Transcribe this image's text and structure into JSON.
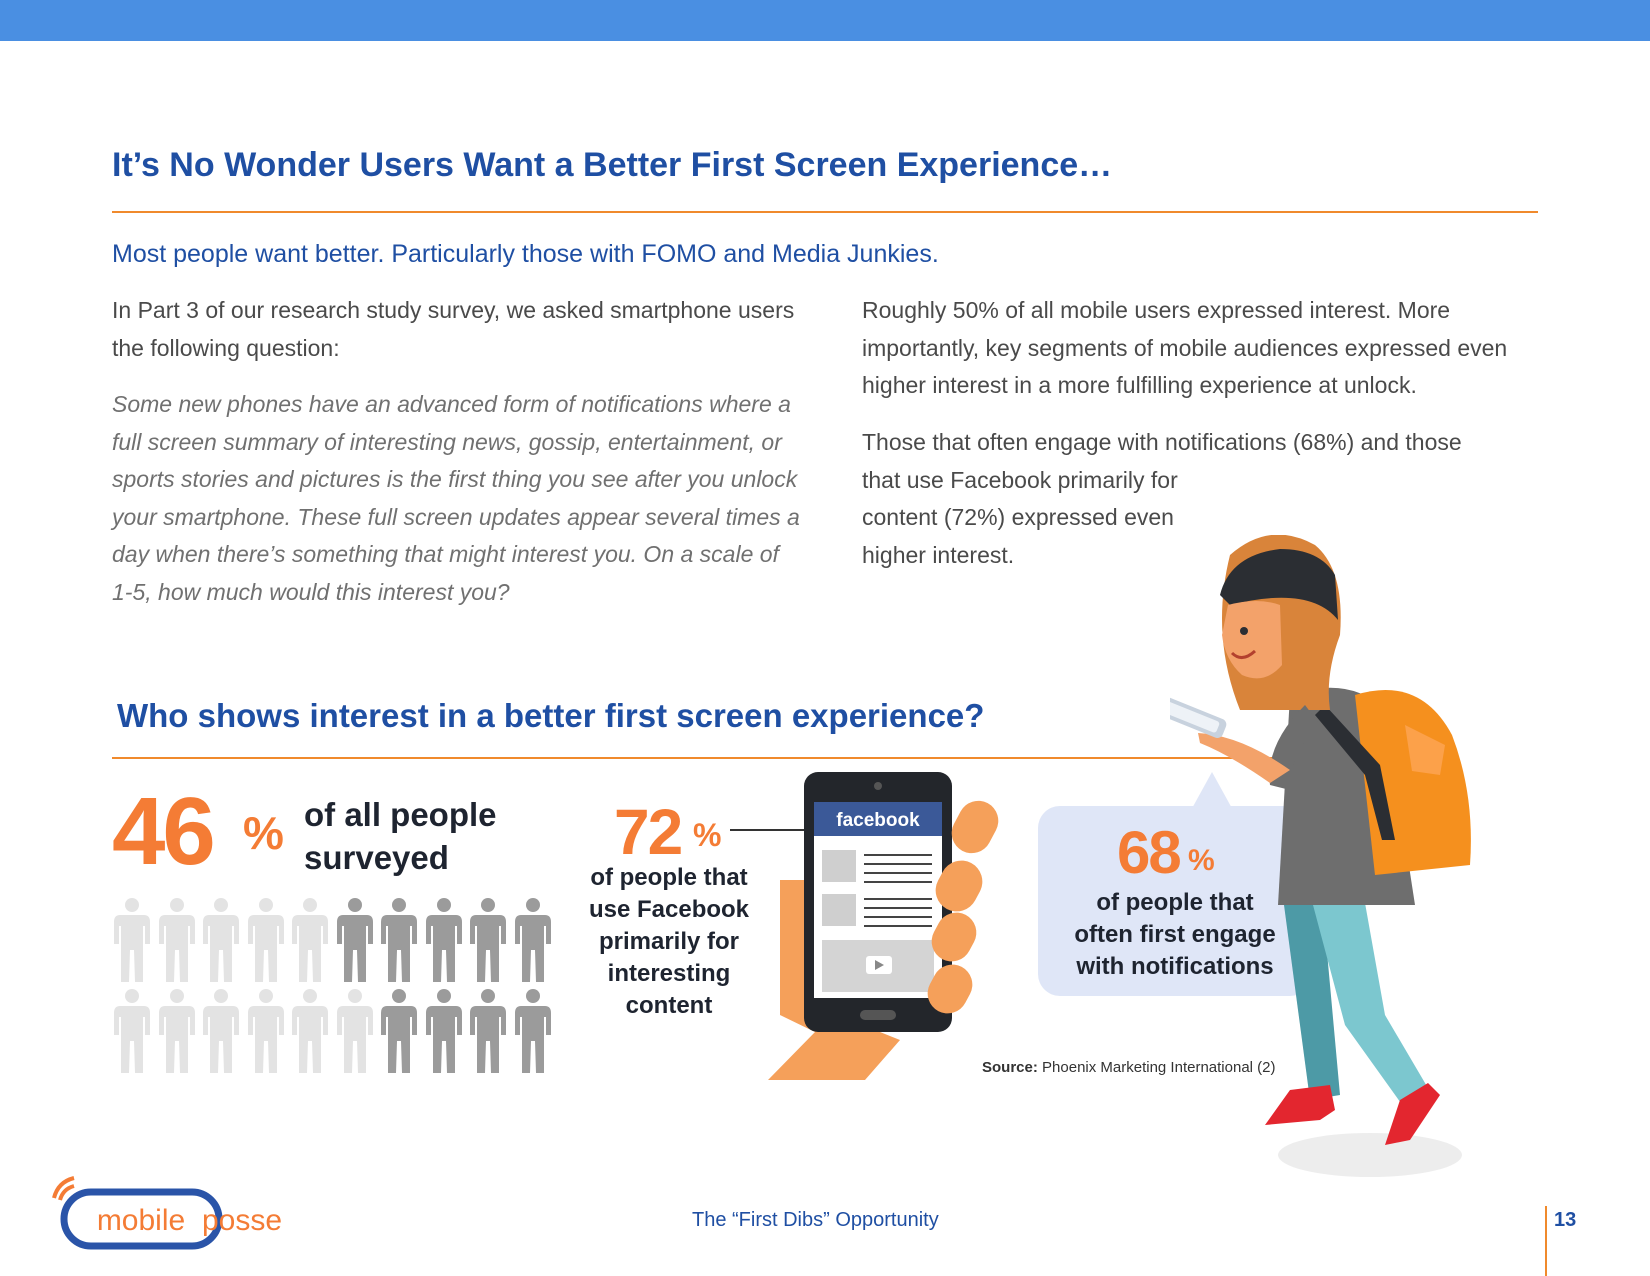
{
  "header": {
    "title": "It’s No Wonder Users Want a Better First Screen Experience…",
    "subtitle": "Most people want better. Particularly those with FOMO and Media Junkies."
  },
  "left_column": {
    "intro": "In Part 3 of our research study survey, we asked smartphone users the following question:",
    "question": "Some new phones have an advanced form of notifications where a full screen summary of interesting news, gossip, entertainment, or sports stories and pictures is the first thing you see after you unlock your smartphone. These full screen updates appear several times a day when there’s something that might interest you. On a scale of 1-5, how much would this interest you?"
  },
  "right_column": {
    "paragraph1": "Roughly 50% of all mobile users expressed interest. More importantly, key segments of mobile audiences expressed even higher interest in a more fulfilling experience at unlock.",
    "paragraph2_lines": [
      "Those that often engage with notifications (68%) and those",
      "that use Facebook primarily for",
      "content (72%) expressed even",
      "higher interest."
    ]
  },
  "section": {
    "title": "Who shows interest in a better first screen experience?"
  },
  "stats": {
    "all_people": {
      "value": "46",
      "unit": "%",
      "label_lines": [
        "of all people",
        "surveyed"
      ],
      "pictogram": {
        "total": 20,
        "highlighted": 9,
        "rows": 2,
        "per_row": 10,
        "light_color": "#e3e3e3",
        "dark_color": "#9b9b9b"
      }
    },
    "facebook": {
      "value": "72",
      "unit": "%",
      "label_lines": [
        "of people that",
        "use Facebook",
        "primarily for",
        "interesting",
        "content"
      ],
      "phone_app_label": "facebook"
    },
    "notifications": {
      "value": "68",
      "unit": "%",
      "label_lines": [
        "of people that",
        "often first engage",
        "with notifications"
      ]
    }
  },
  "source": {
    "label": "Source:",
    "text": "Phoenix Marketing International (2)"
  },
  "footer": {
    "logo_left": "mobile",
    "logo_right": "posse",
    "center": "The “First Dibs” Opportunity",
    "page": "13"
  },
  "colors": {
    "brand_blue": "#1f4fa3",
    "accent_orange": "#f47c35",
    "top_bar": "#4a8fe2",
    "facebook_blue": "#3b5998"
  }
}
